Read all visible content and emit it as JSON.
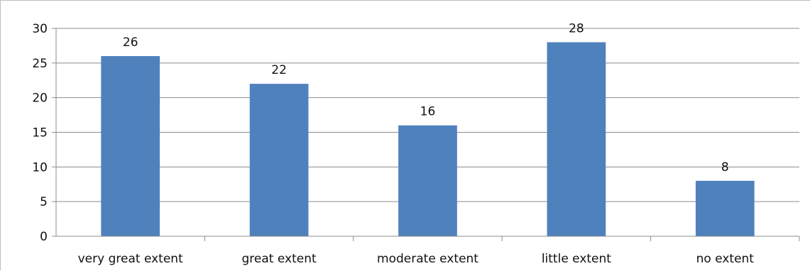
{
  "chart_data": {
    "type": "bar",
    "categories": [
      "very great extent",
      "great extent",
      "moderate extent",
      "little extent",
      "no extent"
    ],
    "values": [
      26,
      22,
      16,
      28,
      8
    ],
    "ylim": [
      0,
      30
    ],
    "yticks": [
      0,
      5,
      10,
      15,
      20,
      25,
      30
    ],
    "grid": true,
    "bar_color": "#4f81bd",
    "data_labels": true
  }
}
